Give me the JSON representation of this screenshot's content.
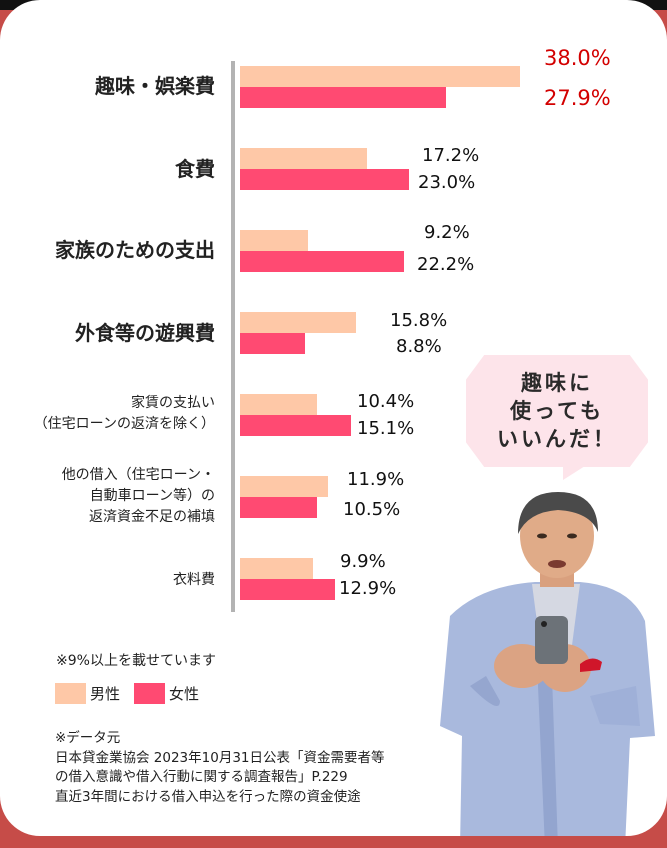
{
  "chart_data": {
    "type": "bar",
    "orientation": "horizontal",
    "title": "",
    "categories": [
      "趣味・娯楽費",
      "食費",
      "家族のための支出",
      "外食等の遊興費",
      "家賃の支払い（住宅ローンの返済を除く）",
      "他の借入（住宅ローン・自動車ローン等）の返済資金不足の補填",
      "衣料費"
    ],
    "series": [
      {
        "name": "男性",
        "color": "#fec8a7",
        "values": [
          38.0,
          17.2,
          9.2,
          15.8,
          10.4,
          11.9,
          9.9
        ]
      },
      {
        "name": "女性",
        "color": "#ff4a72",
        "values": [
          27.9,
          23.0,
          22.2,
          8.8,
          15.1,
          10.5,
          12.9
        ]
      }
    ],
    "value_labels": {
      "male": [
        "38.0%",
        "17.2%",
        "9.2%",
        "15.8%",
        "10.4%",
        "11.9%",
        "9.9%"
      ],
      "female": [
        "27.9%",
        "23.0%",
        "22.2%",
        "8.8%",
        "15.1%",
        "10.5%",
        "12.9%"
      ]
    },
    "highlight_color": "#d30000",
    "unit": "%",
    "xlabel": "",
    "ylabel": "",
    "grid": false,
    "legend_position": "bottom-left"
  },
  "labels": [
    "趣味・娯楽費",
    "食費",
    "家族のための支出",
    "外食等の遊興費",
    "家賃の支払い\n（住宅ローンの返済を除く）",
    "他の借入（住宅ローン・\n自動車ローン等）の\n返済資金不足の補填",
    "衣料費"
  ],
  "note": "※9%以上を載せています",
  "legend": {
    "male": "男性",
    "female": "女性"
  },
  "source": {
    "line1": "※データ元",
    "line2": "日本貸金業協会 2023年10月31日公表「資金需要者等",
    "line3": "の借入意識や借入行動に関する調査報告」P.229",
    "line4": "直近3年間における借入申込を行った際の資金使途"
  },
  "bubble": {
    "text": "趣味に\n使っても\nいいんだ！"
  },
  "colors": {
    "background": "#c64c48",
    "male": "#fec8a7",
    "female": "#ff4a72",
    "axis": "#b3b3b3",
    "bubble": "#fde4ea"
  }
}
